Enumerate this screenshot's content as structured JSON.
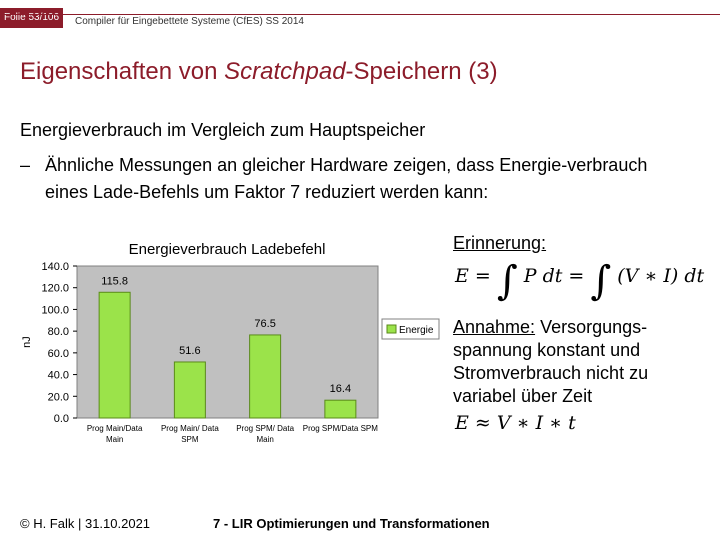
{
  "header": {
    "folio": "Folie 53/106",
    "course": "Compiler für Eingebettete Systeme (CfES) SS 2014"
  },
  "title": {
    "part1": "Eigenschaften von ",
    "italic": "Scratchpad",
    "part2": "-Speichern (3)"
  },
  "content": {
    "bullet_main": "Energieverbrauch im Vergleich zum Hauptspeicher",
    "bullet_dash": "–",
    "bullet_sub": "Ähnliche Messungen an gleicher Hardware zeigen, dass Energie-verbrauch eines Lade-Befehls um Faktor 7 reduziert werden kann:"
  },
  "side": {
    "reminder": "Erinnerung:",
    "formula1_lhs": "E = ",
    "formula1_int1": "∫",
    "formula1_mid": " P dt = ",
    "formula1_int2": "∫",
    "formula1_rhs": " (V ∗ I) dt",
    "assume_label": "Annahme:",
    "assume_text": " Versorgungs-spannung konstant und Stromverbrauch nicht zu variabel über Zeit",
    "formula2": "E ≈ V ∗ I ∗ t"
  },
  "footer": {
    "left": "© H. Falk | 31.10.2021",
    "middle": "7 - LIR Optimierungen und Transformationen"
  },
  "colors": {
    "accent": "#8c1c2a",
    "bar_fill": "#9be34a",
    "bar_stroke": "#5a8a1a",
    "plot_bg": "#c0c0c0"
  },
  "chart_data": {
    "type": "bar",
    "title": "Energieverbrauch Ladebefehl",
    "ylabel": "nJ",
    "categories": [
      [
        "Prog Main/Data",
        "Main"
      ],
      [
        "Prog Main/ Data",
        "SPM"
      ],
      [
        "Prog SPM/ Data",
        "Main"
      ],
      [
        "Prog SPM/Data SPM"
      ]
    ],
    "series": [
      {
        "name": "Energie",
        "values": [
          115.8,
          51.6,
          76.5,
          16.4
        ],
        "labels": [
          "115.8",
          "51.6",
          "76.5",
          "16.4"
        ]
      }
    ],
    "yticks": [
      "0.0",
      "20.0",
      "40.0",
      "60.0",
      "80.0",
      "100.0",
      "120.0",
      "140.0"
    ],
    "ylim": [
      0,
      140
    ],
    "legend": "right",
    "grid": false
  }
}
